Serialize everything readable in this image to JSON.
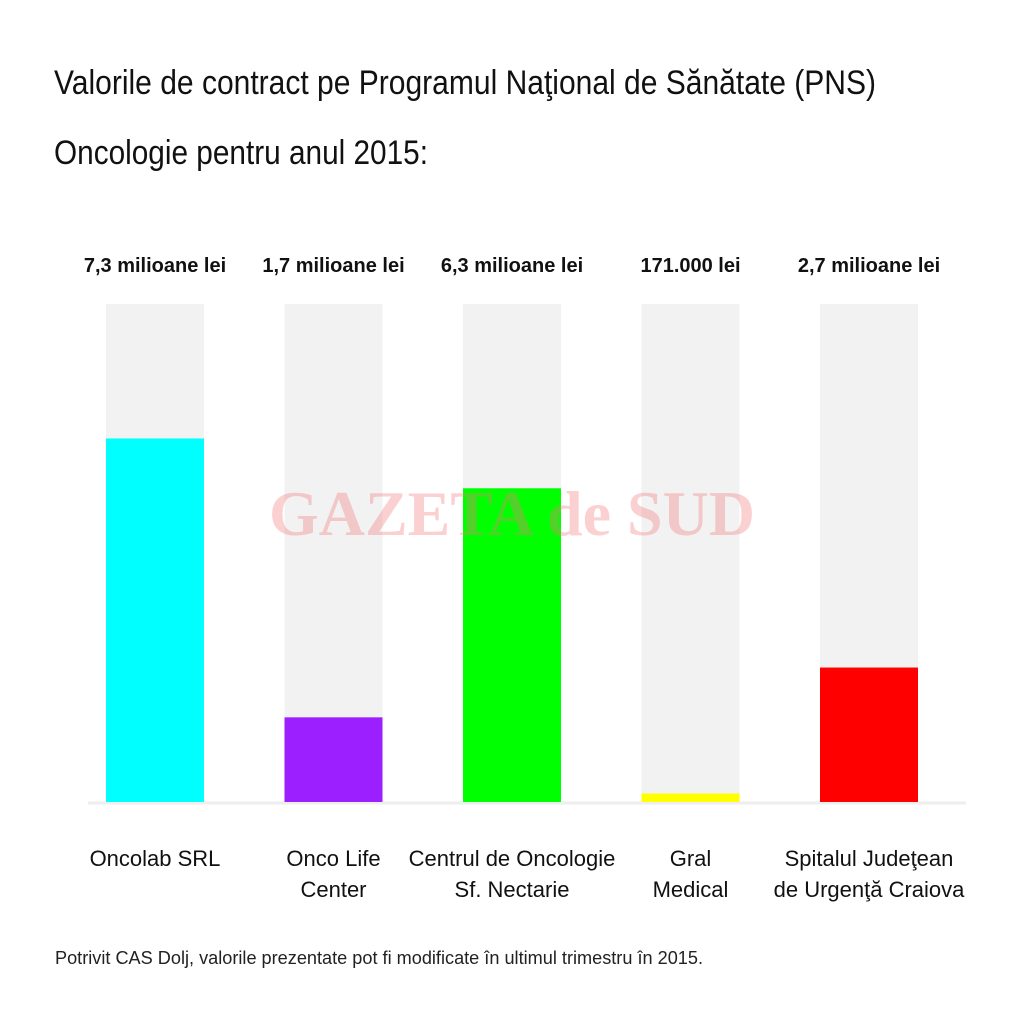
{
  "chart_data": {
    "type": "bar",
    "title": [
      "Valorile de contract pe Programul Naţional de Sănătate (PNS)",
      "Oncologie pentru anul 2015:"
    ],
    "categories": [
      [
        "Oncolab SRL"
      ],
      [
        "Onco Life",
        "Center"
      ],
      [
        "Centrul de Oncologie",
        "Sf. Nectarie"
      ],
      [
        "Gral",
        "Medical"
      ],
      [
        "Spitalul Judeţean",
        "de Urgenţă Craiova"
      ]
    ],
    "values": [
      7300000,
      1700000,
      6300000,
      171000,
      2700000
    ],
    "value_labels": [
      "7,3 milioane lei",
      "1,7 milioane lei",
      "6,3 milioane lei",
      "171.000 lei",
      "2,7 milioane lei"
    ],
    "colors": [
      "#00ffff",
      "#9b1fff",
      "#00ff00",
      "#ffff00",
      "#ff0000"
    ],
    "ylim": [
      0,
      10000000
    ],
    "watermark": "GAZETA de SUD",
    "note": "Potrivit CAS Dolj, valorile prezentate pot fi modificate în ultimul trimestru în 2015."
  }
}
